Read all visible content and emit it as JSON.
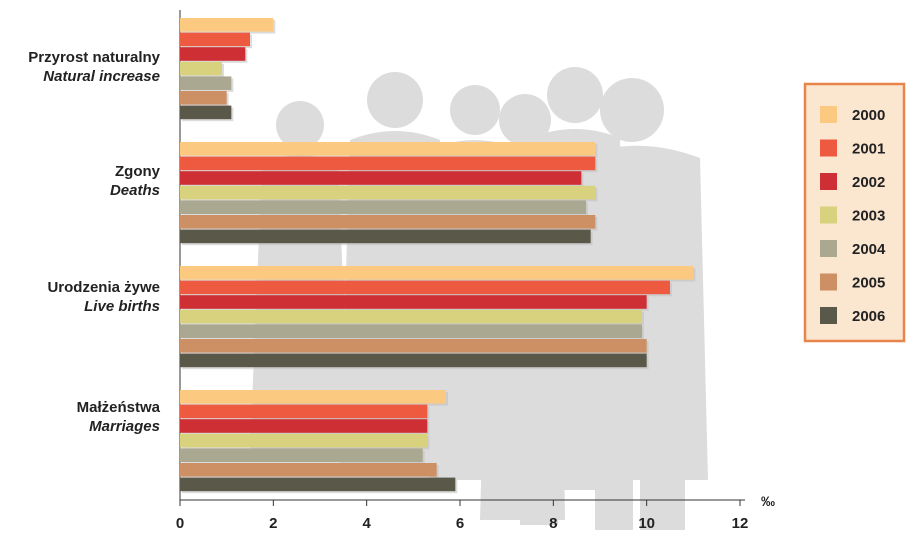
{
  "chart_data": {
    "type": "bar",
    "orientation": "horizontal",
    "categories": [
      {
        "label_pl": "Przyrost naturalny",
        "label_en": "Natural increase"
      },
      {
        "label_pl": "Zgony",
        "label_en": "Deaths"
      },
      {
        "label_pl": "Urodzenia żywe",
        "label_en": "Live births"
      },
      {
        "label_pl": "Małżeństwa",
        "label_en": "Marriages"
      }
    ],
    "series": [
      {
        "name": "2000",
        "color": "#FCC980",
        "values": [
          2.0,
          8.9,
          11.0,
          5.7
        ]
      },
      {
        "name": "2001",
        "color": "#EE5A40",
        "values": [
          1.5,
          8.9,
          10.5,
          5.3
        ]
      },
      {
        "name": "2002",
        "color": "#CE2F34",
        "values": [
          1.4,
          8.6,
          10.0,
          5.3
        ]
      },
      {
        "name": "2003",
        "color": "#D8D27E",
        "values": [
          0.9,
          8.9,
          9.9,
          5.3
        ]
      },
      {
        "name": "2004",
        "color": "#AAA891",
        "values": [
          1.1,
          8.7,
          9.9,
          5.2
        ]
      },
      {
        "name": "2005",
        "color": "#CD9064",
        "values": [
          1.0,
          8.9,
          10.0,
          5.5
        ]
      },
      {
        "name": "2006",
        "color": "#595849",
        "values": [
          1.1,
          8.8,
          10.0,
          5.9
        ]
      }
    ],
    "xlim": [
      0,
      12
    ],
    "xticks": [
      "0",
      "2",
      "4",
      "6",
      "8",
      "10",
      "12"
    ],
    "unit": "‰",
    "legend_position": "right",
    "legend_frame_color": "#E8854A",
    "legend_background": "#FBE6D0",
    "grid": false,
    "background_silhouette_color": "#DCDCDC"
  }
}
